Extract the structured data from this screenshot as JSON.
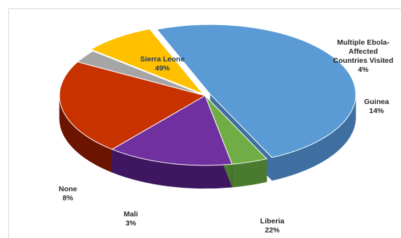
{
  "chart_data": {
    "type": "pie",
    "title": "",
    "slices": [
      {
        "label": "Sierra Leone",
        "value": 49,
        "pct_label": "49%",
        "color": "#5b9bd5",
        "side": "#3f6fa0"
      },
      {
        "label": "Multiple Ebola-Affected Countries Visited",
        "value": 4,
        "pct_label": "4%",
        "color": "#70ad47",
        "side": "#4a7a2d"
      },
      {
        "label": "Guinea",
        "value": 14,
        "pct_label": "14%",
        "color": "#7030a0",
        "side": "#3e1760"
      },
      {
        "label": "Liberia",
        "value": 22,
        "pct_label": "22%",
        "color": "#c83200",
        "side": "#6b1500"
      },
      {
        "label": "Mali",
        "value": 3,
        "pct_label": "3%",
        "color": "#a5a5a5",
        "side": "#6e6e6e"
      },
      {
        "label": "None",
        "value": 8,
        "pct_label": "8%",
        "color": "#ffc000",
        "side": "#b58800"
      }
    ],
    "style": "3d-exploded-pie",
    "legend": "none",
    "data_labels": "category and percentage"
  },
  "labels": {
    "sierra_leone_name": "Sierra Leone",
    "sierra_leone_pct": "49%",
    "multiple_line1": "Multiple Ebola-",
    "multiple_line2": "Affected",
    "multiple_line3": "Countries Visited",
    "multiple_pct": "4%",
    "guinea_name": "Guinea",
    "guinea_pct": "14%",
    "liberia_name": "Liberia",
    "liberia_pct": "22%",
    "mali_name": "Mali",
    "mali_pct": "3%",
    "none_name": "None",
    "none_pct": "8%"
  }
}
